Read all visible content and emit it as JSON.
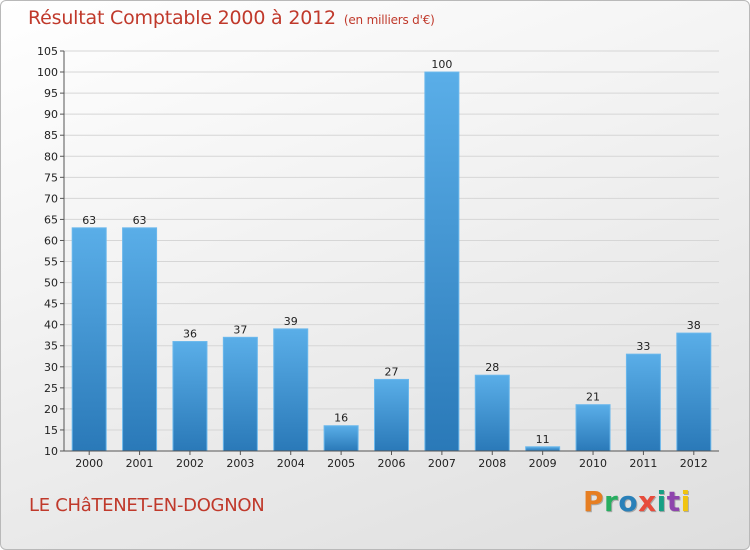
{
  "header": {
    "title": "Résultat Comptable 2000 à 2012",
    "subtitle": "(en milliers d'€)"
  },
  "footer": {
    "commune": "LE CHâTENET-EN-DOGNON",
    "brand": "Proxiti",
    "brand_colors": [
      "#e67e22",
      "#27ae60",
      "#2980b9",
      "#e74c3c",
      "#16a085",
      "#8e44ad",
      "#f1c40f"
    ]
  },
  "chart_data": {
    "type": "bar",
    "title": "Résultat Comptable 2000 à 2012",
    "subtitle": "(en milliers d'€)",
    "categories": [
      "2000",
      "2001",
      "2002",
      "2003",
      "2004",
      "2005",
      "2006",
      "2007",
      "2008",
      "2009",
      "2010",
      "2011",
      "2012"
    ],
    "values": [
      63,
      63,
      36,
      37,
      39,
      16,
      27,
      100,
      28,
      11,
      21,
      33,
      38
    ],
    "xlabel": "",
    "ylabel": "",
    "ylim": [
      10,
      105
    ],
    "yticks": [
      10,
      15,
      20,
      25,
      30,
      35,
      40,
      45,
      50,
      55,
      60,
      65,
      70,
      75,
      80,
      85,
      90,
      95,
      100,
      105
    ],
    "grid": true,
    "bar_color": "#3a8fd0",
    "data_labels": true
  }
}
